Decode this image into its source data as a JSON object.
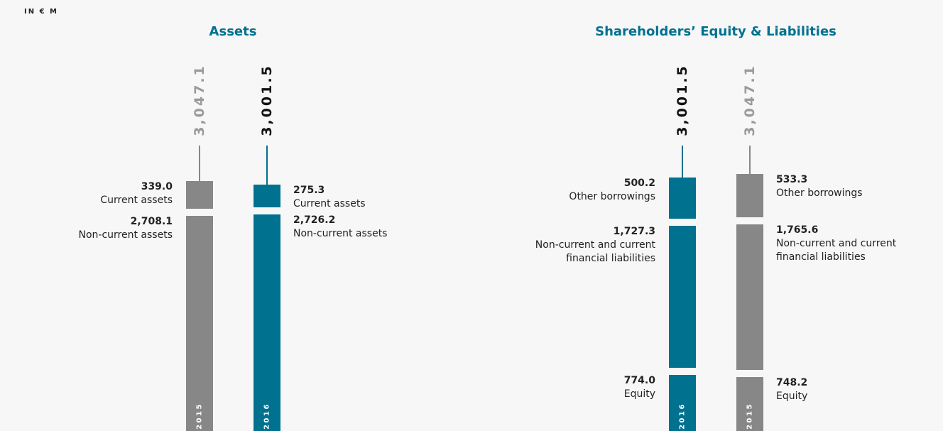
{
  "unit_label": "IN € M",
  "chart_data": [
    {
      "type": "stacked_bar",
      "title": "Assets",
      "bars": [
        {
          "name": "2015",
          "color": "#878787",
          "total_color": "#9a9a9a",
          "total": 3047.1,
          "total_label": "3,047.1",
          "segments": [
            {
              "name": "Current assets",
              "value": 339.0,
              "value_label": "339.0"
            },
            {
              "name": "Non-current assets",
              "value": 2708.1,
              "value_label": "2,708.1"
            }
          ]
        },
        {
          "name": "2016",
          "color": "#00718f",
          "total_color": "#111111",
          "total": 3001.5,
          "total_label": "3,001.5",
          "segments": [
            {
              "name": "Current assets",
              "value": 275.3,
              "value_label": "275.3"
            },
            {
              "name": "Non-current assets",
              "value": 2726.2,
              "value_label": "2,726.2"
            }
          ]
        }
      ]
    },
    {
      "type": "stacked_bar",
      "title": "Shareholders’ Equity & Liabilities",
      "bars": [
        {
          "name": "2016",
          "color": "#00718f",
          "total_color": "#111111",
          "total": 3001.5,
          "total_label": "3,001.5",
          "segments": [
            {
              "name": "Other borrowings",
              "value": 500.2,
              "value_label": "500.2"
            },
            {
              "name": "Non-current and current financial liabilities",
              "value": 1727.3,
              "value_label": "1,727.3"
            },
            {
              "name": "Equity",
              "value": 774.0,
              "value_label": "774.0"
            }
          ]
        },
        {
          "name": "2015",
          "color": "#878787",
          "total_color": "#9a9a9a",
          "total": 3047.1,
          "total_label": "3,047.1",
          "segments": [
            {
              "name": "Other borrowings",
              "value": 533.3,
              "value_label": "533.3"
            },
            {
              "name": "Non-current and current financial liabilities",
              "value": 1765.6,
              "value_label": "1,765.6"
            },
            {
              "name": "Equity",
              "value": 748.2,
              "value_label": "748.2"
            }
          ]
        }
      ]
    }
  ]
}
